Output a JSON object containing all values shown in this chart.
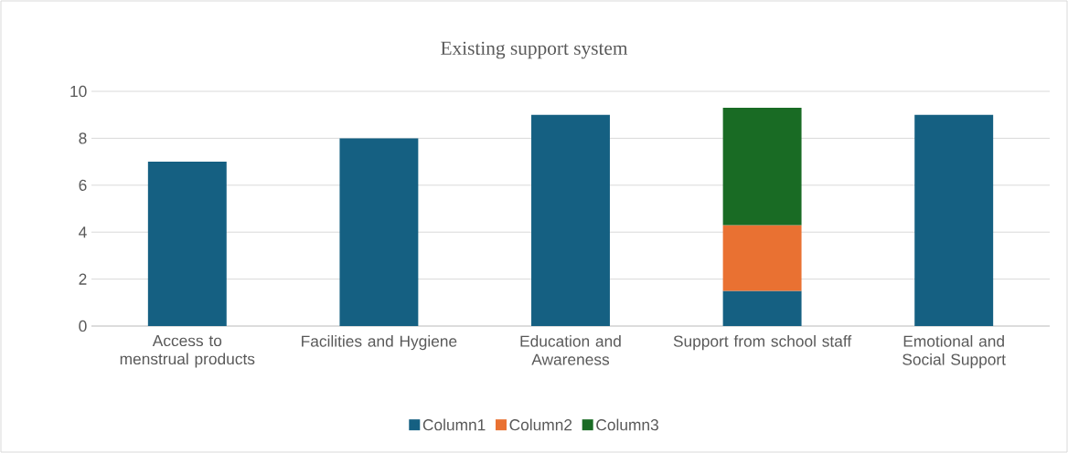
{
  "chart_data": {
    "type": "bar",
    "title": "Existing support system",
    "categories": [
      "Access to menstrual products",
      "Facilities and Hygiene",
      "Education and Awareness",
      "Support from school staff",
      "Emotional and Social Support"
    ],
    "series": [
      {
        "name": "Column1",
        "color": "#156082",
        "values": [
          7,
          8,
          9,
          1.5,
          9
        ]
      },
      {
        "name": "Column2",
        "color": "#e97132",
        "values": [
          null,
          null,
          null,
          2.8,
          null
        ]
      },
      {
        "name": "Column3",
        "color": "#196b24",
        "values": [
          null,
          null,
          null,
          5,
          null
        ]
      }
    ],
    "stacked": true,
    "ylim": [
      0,
      10
    ],
    "yticks": [
      0,
      2,
      4,
      6,
      8,
      10
    ],
    "grid": "y",
    "legend": "bottom"
  }
}
